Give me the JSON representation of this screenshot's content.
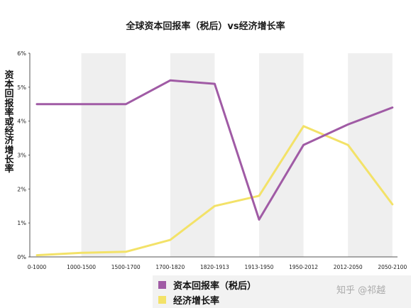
{
  "chart_data": {
    "type": "line",
    "title": "全球资本回报率（税后）vs经济增长率",
    "ylabel": "资本回报率或经济增长率",
    "categories": [
      "0-1000",
      "1000-1500",
      "1500-1700",
      "1700-1820",
      "1820-1913",
      "1913-1950",
      "1950-2012",
      "2012-2050",
      "2050-2100"
    ],
    "yticks": [
      "0%",
      "1%",
      "2%",
      "3%",
      "4%",
      "5%",
      "6%"
    ],
    "ylim": [
      0,
      6
    ],
    "grid": false,
    "shaded_bands": true,
    "legend_position": "bottom",
    "series": [
      {
        "name": "资本回报率（税后）",
        "color": "#a05ba5",
        "values": [
          4.5,
          4.5,
          4.5,
          5.2,
          5.1,
          1.1,
          3.3,
          3.9,
          4.4
        ]
      },
      {
        "name": "经济增长率",
        "color": "#f3e268",
        "values": [
          0.05,
          0.12,
          0.15,
          0.5,
          1.5,
          1.8,
          3.85,
          3.3,
          1.55
        ]
      }
    ]
  },
  "watermark": "知乎 @祁越"
}
